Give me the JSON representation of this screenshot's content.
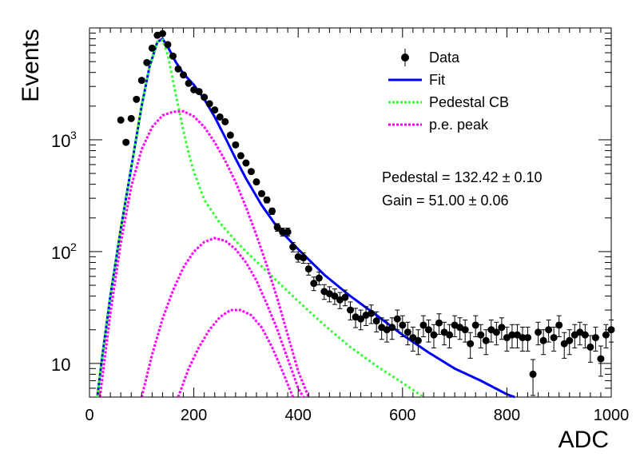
{
  "chart_data": {
    "type": "scatter",
    "xlabel": "ADC",
    "ylabel": "Events",
    "xlim": [
      0,
      1000
    ],
    "ylim": [
      5,
      10000
    ],
    "y_scale": "log",
    "x_ticks": [
      0,
      200,
      400,
      600,
      800,
      1000
    ],
    "x_tick_labels": [
      "0",
      "200",
      "400",
      "600",
      "800",
      "1000"
    ],
    "y_tick_labels": [
      {
        "value": 10,
        "base": "10",
        "exp": ""
      },
      {
        "value": 100,
        "base": "10",
        "exp": "2"
      },
      {
        "value": 1000,
        "base": "10",
        "exp": "3"
      }
    ],
    "legend": {
      "position": "top-right",
      "entries": [
        {
          "label": "Data",
          "style": "marker",
          "color": "#000000"
        },
        {
          "label": "Fit",
          "style": "solid",
          "color": "#0000ff"
        },
        {
          "label": "Pedestal CB",
          "style": "dotted",
          "color": "#33ff33"
        },
        {
          "label": "p.e. peak",
          "style": "dotted",
          "color": "#ff00ff"
        }
      ]
    },
    "annotations": [
      {
        "text": "Pedestal = 132.42 ± 0.10"
      },
      {
        "text": "Gain = 51.00 ± 0.06"
      }
    ],
    "data_points": [
      [
        60,
        1500
      ],
      [
        70,
        950
      ],
      [
        80,
        1550
      ],
      [
        90,
        2300
      ],
      [
        100,
        3400
      ],
      [
        110,
        4900
      ],
      [
        120,
        6600
      ],
      [
        130,
        8600
      ],
      [
        140,
        8900
      ],
      [
        150,
        7100
      ],
      [
        160,
        5600
      ],
      [
        170,
        4300
      ],
      [
        180,
        3800
      ],
      [
        190,
        3200
      ],
      [
        200,
        2800
      ],
      [
        210,
        2700
      ],
      [
        220,
        2400
      ],
      [
        230,
        2100
      ],
      [
        240,
        1850
      ],
      [
        250,
        1600
      ],
      [
        260,
        1450
      ],
      [
        270,
        1100
      ],
      [
        280,
        900
      ],
      [
        290,
        720
      ],
      [
        300,
        620
      ],
      [
        310,
        520
      ],
      [
        320,
        420
      ],
      [
        330,
        330
      ],
      [
        340,
        290
      ],
      [
        350,
        230
      ],
      [
        360,
        165
      ],
      [
        370,
        150
      ],
      [
        380,
        150
      ],
      [
        390,
        110
      ],
      [
        400,
        90
      ],
      [
        410,
        88
      ],
      [
        420,
        70
      ],
      [
        430,
        52
      ],
      [
        440,
        58
      ],
      [
        450,
        44
      ],
      [
        460,
        42
      ],
      [
        470,
        40
      ],
      [
        480,
        37
      ],
      [
        490,
        39
      ],
      [
        500,
        30
      ],
      [
        510,
        26
      ],
      [
        520,
        25
      ],
      [
        530,
        27
      ],
      [
        540,
        28
      ],
      [
        550,
        24
      ],
      [
        560,
        21
      ],
      [
        570,
        20
      ],
      [
        580,
        21
      ],
      [
        590,
        25
      ],
      [
        600,
        22
      ],
      [
        610,
        19
      ],
      [
        620,
        17
      ],
      [
        630,
        16
      ],
      [
        640,
        22
      ],
      [
        650,
        20
      ],
      [
        660,
        18
      ],
      [
        670,
        23
      ],
      [
        680,
        19
      ],
      [
        690,
        18
      ],
      [
        700,
        22
      ],
      [
        710,
        21
      ],
      [
        720,
        20
      ],
      [
        730,
        15
      ],
      [
        740,
        22
      ],
      [
        750,
        18
      ],
      [
        760,
        16
      ],
      [
        770,
        20
      ],
      [
        780,
        19
      ],
      [
        790,
        21
      ],
      [
        800,
        17
      ],
      [
        810,
        18
      ],
      [
        820,
        18
      ],
      [
        830,
        17
      ],
      [
        840,
        17
      ],
      [
        850,
        8
      ],
      [
        860,
        19
      ],
      [
        870,
        16
      ],
      [
        880,
        20
      ],
      [
        890,
        17
      ],
      [
        900,
        22
      ],
      [
        910,
        15
      ],
      [
        920,
        16
      ],
      [
        930,
        18
      ],
      [
        940,
        19
      ],
      [
        950,
        18
      ],
      [
        960,
        14
      ],
      [
        970,
        17
      ],
      [
        980,
        11
      ],
      [
        990,
        18
      ],
      [
        1000,
        20
      ]
    ],
    "series": [
      {
        "name": "Fit",
        "points": [
          [
            15,
            5
          ],
          [
            25,
            12
          ],
          [
            40,
            40
          ],
          [
            60,
            160
          ],
          [
            80,
            560
          ],
          [
            100,
            2000
          ],
          [
            115,
            4500
          ],
          [
            130,
            7500
          ],
          [
            140,
            8000
          ],
          [
            150,
            6800
          ],
          [
            165,
            5000
          ],
          [
            180,
            3900
          ],
          [
            200,
            3100
          ],
          [
            220,
            2300
          ],
          [
            240,
            1600
          ],
          [
            260,
            1050
          ],
          [
            280,
            680
          ],
          [
            300,
            450
          ],
          [
            330,
            260
          ],
          [
            360,
            165
          ],
          [
            400,
            105
          ],
          [
            450,
            62
          ],
          [
            500,
            40
          ],
          [
            550,
            27
          ],
          [
            600,
            18
          ],
          [
            650,
            12.5
          ],
          [
            700,
            9
          ],
          [
            750,
            7
          ],
          [
            800,
            5.3
          ],
          [
            815,
            5
          ]
        ]
      },
      {
        "name": "Pedestal CB",
        "points": [
          [
            15,
            5
          ],
          [
            25,
            12
          ],
          [
            40,
            40
          ],
          [
            60,
            160
          ],
          [
            80,
            560
          ],
          [
            100,
            2000
          ],
          [
            115,
            4500
          ],
          [
            130,
            7500
          ],
          [
            140,
            7800
          ],
          [
            150,
            5800
          ],
          [
            160,
            3400
          ],
          [
            170,
            2000
          ],
          [
            180,
            1200
          ],
          [
            190,
            760
          ],
          [
            200,
            520
          ],
          [
            220,
            290
          ],
          [
            250,
            180
          ],
          [
            280,
            125
          ],
          [
            300,
            100
          ],
          [
            350,
            60
          ],
          [
            400,
            36
          ],
          [
            450,
            22
          ],
          [
            500,
            14
          ],
          [
            550,
            9.5
          ],
          [
            600,
            6.7
          ],
          [
            640,
            5
          ]
        ]
      },
      {
        "name": "p.e. peak",
        "points": [
          [
            20,
            5
          ],
          [
            40,
            28
          ],
          [
            60,
            120
          ],
          [
            80,
            380
          ],
          [
            100,
            820
          ],
          [
            120,
            1300
          ],
          [
            140,
            1650
          ],
          [
            160,
            1780
          ],
          [
            180,
            1800
          ],
          [
            200,
            1620
          ],
          [
            220,
            1300
          ],
          [
            240,
            950
          ],
          [
            260,
            650
          ],
          [
            280,
            420
          ],
          [
            300,
            250
          ],
          [
            320,
            140
          ],
          [
            340,
            75
          ],
          [
            360,
            38
          ],
          [
            380,
            18
          ],
          [
            400,
            8.5
          ],
          [
            420,
            5
          ]
        ]
      },
      {
        "name": "p.e. peak",
        "points": [
          [
            100,
            5
          ],
          [
            120,
            12
          ],
          [
            140,
            25
          ],
          [
            160,
            45
          ],
          [
            180,
            72
          ],
          [
            200,
            100
          ],
          [
            220,
            122
          ],
          [
            240,
            132
          ],
          [
            260,
            125
          ],
          [
            280,
            105
          ],
          [
            300,
            80
          ],
          [
            320,
            55
          ],
          [
            340,
            34
          ],
          [
            360,
            20
          ],
          [
            380,
            11
          ],
          [
            400,
            6
          ],
          [
            410,
            5
          ]
        ]
      },
      {
        "name": "p.e. peak",
        "points": [
          [
            170,
            5
          ],
          [
            190,
            9
          ],
          [
            210,
            14
          ],
          [
            230,
            20
          ],
          [
            250,
            26
          ],
          [
            270,
            30
          ],
          [
            290,
            30
          ],
          [
            310,
            27
          ],
          [
            330,
            21
          ],
          [
            350,
            14
          ],
          [
            370,
            8.5
          ],
          [
            390,
            5
          ]
        ]
      }
    ]
  }
}
